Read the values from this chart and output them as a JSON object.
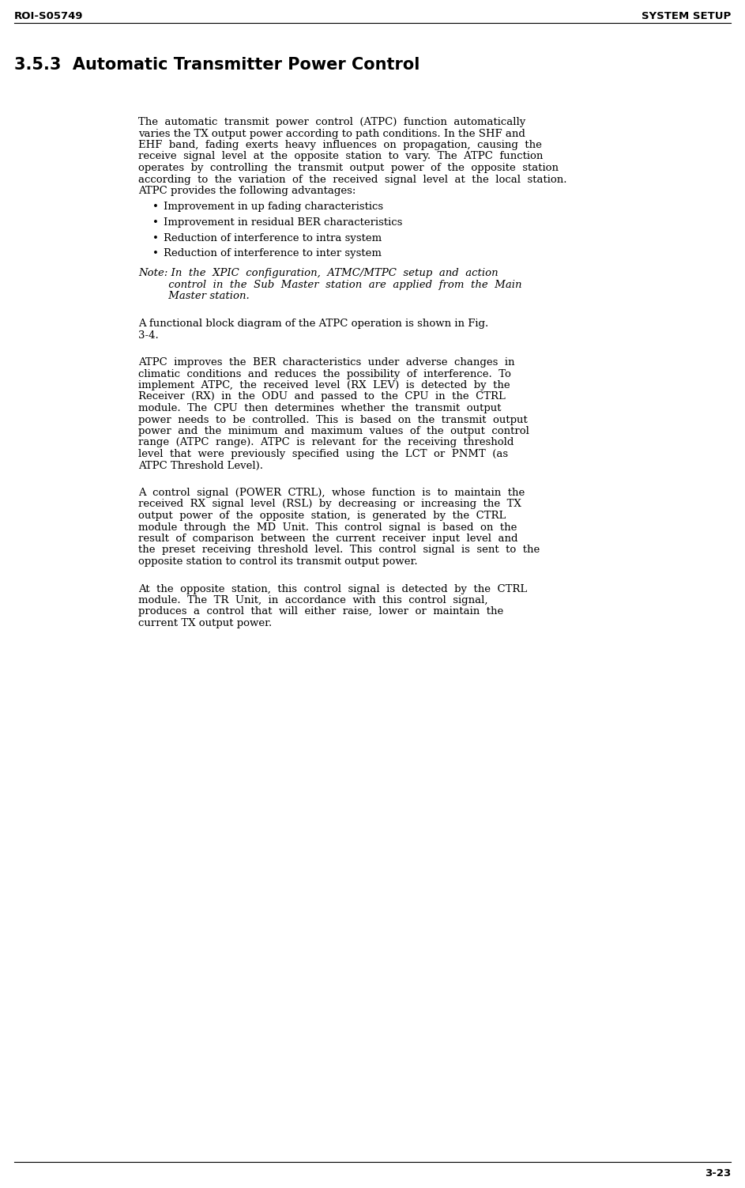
{
  "header_left": "ROI-S05749",
  "header_right": "SYSTEM SETUP",
  "footer_right": "3-23",
  "section_title": "3.5.3  Automatic Transmitter Power Control",
  "bg_color": "#ffffff",
  "text_color": "#000000",
  "header_fontsize": 9.5,
  "section_fontsize": 15.0,
  "body_fontsize": 9.5,
  "footer_fontsize": 9.5,
  "para1_lines": [
    "The  automatic  transmit  power  control  (ATPC)  function  automatically",
    "varies the TX output power according to path conditions. In the SHF and",
    "EHF  band,  fading  exerts  heavy  influences  on  propagation,  causing  the",
    "receive  signal  level  at  the  opposite  station  to  vary.  The  ATPC  function",
    "operates  by  controlling  the  transmit  output  power  of  the  opposite  station",
    "according  to  the  variation  of  the  received  signal  level  at  the  local  station.",
    "ATPC provides the following advantages:"
  ],
  "bullets": [
    "Improvement in up fading characteristics",
    "Improvement in residual BER characteristics",
    "Reduction of interference to intra system",
    "Reduction of interference to inter system"
  ],
  "note_lines": [
    "Note: In  the  XPIC  configuration,  ATMC/MTPC  setup  and  action",
    "         control  in  the  Sub  Master  station  are  applied  from  the  Main",
    "         Master station."
  ],
  "para2_lines": [
    "A functional block diagram of the ATPC operation is shown in Fig.",
    "3-4."
  ],
  "para3_lines": [
    "ATPC  improves  the  BER  characteristics  under  adverse  changes  in",
    "climatic  conditions  and  reduces  the  possibility  of  interference.  To",
    "implement  ATPC,  the  received  level  (RX  LEV)  is  detected  by  the",
    "Receiver  (RX)  in  the  ODU  and  passed  to  the  CPU  in  the  CTRL",
    "module.  The  CPU  then  determines  whether  the  transmit  output",
    "power  needs  to  be  controlled.  This  is  based  on  the  transmit  output",
    "power  and  the  minimum  and  maximum  values  of  the  output  control",
    "range  (ATPC  range).  ATPC  is  relevant  for  the  receiving  threshold",
    "level  that  were  previously  specified  using  the  LCT  or  PNMT  (as",
    "ATPC Threshold Level)."
  ],
  "para4_lines": [
    "A  control  signal  (POWER  CTRL),  whose  function  is  to  maintain  the",
    "received  RX  signal  level  (RSL)  by  decreasing  or  increasing  the  TX",
    "output  power  of  the  opposite  station,  is  generated  by  the  CTRL",
    "module  through  the  MD  Unit.  This  control  signal  is  based  on  the",
    "result  of  comparison  between  the  current  receiver  input  level  and",
    "the  preset  receiving  threshold  level.  This  control  signal  is  sent  to  the",
    "opposite station to control its transmit output power."
  ],
  "para5_lines": [
    "At  the  opposite  station,  this  control  signal  is  detected  by  the  CTRL",
    "module.  The  TR  Unit,  in  accordance  with  this  control  signal,",
    "produces  a  control  that  will  either  raise,  lower  or  maintain  the",
    "current TX output power."
  ]
}
